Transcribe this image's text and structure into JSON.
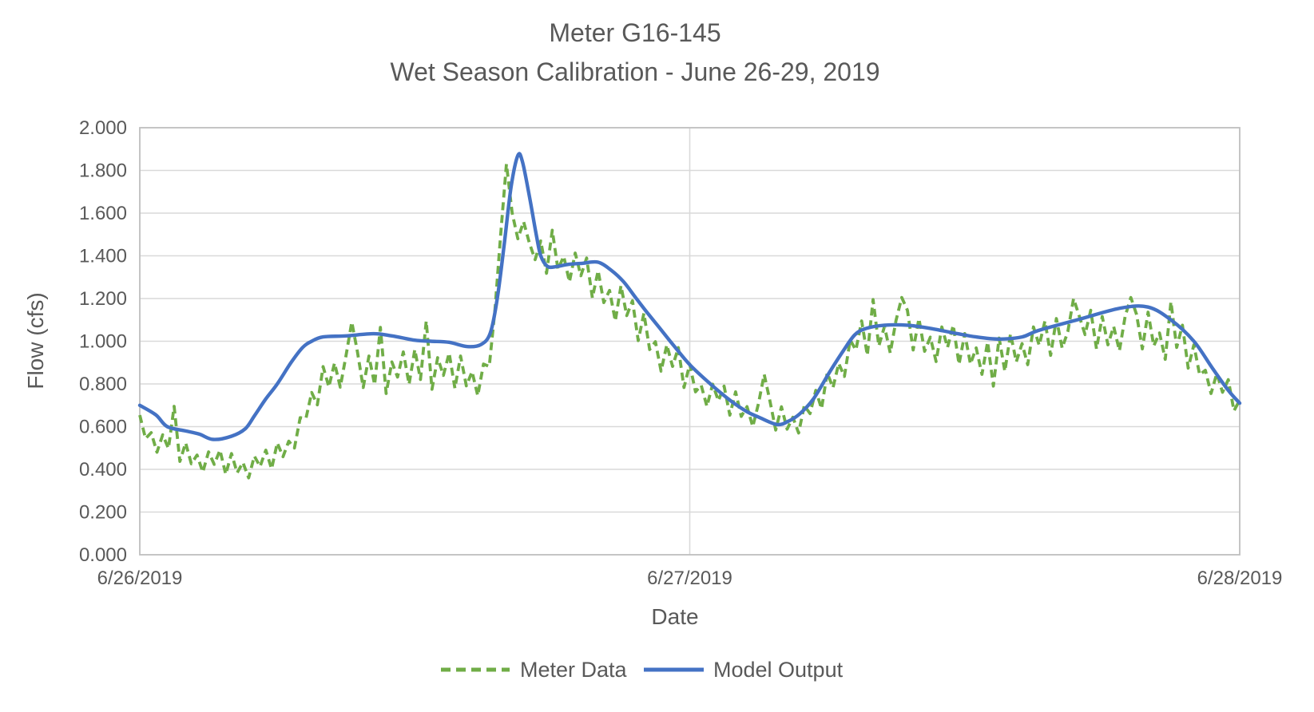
{
  "title": {
    "line1": "Meter G16-145",
    "line2": "Wet Season Calibration - June 26-29, 2019"
  },
  "axes": {
    "y": {
      "title": "Flow (cfs)",
      "tick_labels": [
        "2.000",
        "1.800",
        "1.600",
        "1.400",
        "1.200",
        "1.000",
        "0.800",
        "0.600",
        "0.400",
        "0.200",
        "0.000"
      ],
      "min": 0,
      "max": 2,
      "step": 0.2
    },
    "x": {
      "title": "Date",
      "tick_labels": [
        "6/26/2019",
        "6/27/2019",
        "6/28/2019"
      ],
      "tick_hours": [
        0,
        24,
        48
      ]
    }
  },
  "legend": {
    "items": [
      {
        "label": "Meter Data",
        "color": "#70AD47",
        "style": "dashed"
      },
      {
        "label": "Model Output",
        "color": "#4472C4",
        "style": "solid"
      }
    ]
  },
  "colors": {
    "meter_data": "#70AD47",
    "model_output": "#4472C4",
    "text": "#595959",
    "gridline": "#D9D9D9",
    "axis_line": "#BFBFBF"
  },
  "chart_data": {
    "type": "line",
    "title": "Meter G16-145 | Wet Season Calibration - June 26-29, 2019",
    "xlabel": "Date",
    "ylabel": "Flow (cfs)",
    "ylim": [
      0,
      2
    ],
    "xlim_hours": [
      0,
      48
    ],
    "x_unit": "hours since 6/26/2019 00:00",
    "x_tick_hours": [
      0,
      24,
      48
    ],
    "x_tick_labels": [
      "6/26/2019",
      "6/27/2019",
      "6/28/2019"
    ],
    "grid": "horizontal every 0.200 plus vertical day boundary at 6/27/2019",
    "legend_position": "bottom",
    "series": [
      {
        "name": "Meter Data",
        "color": "#70AD47",
        "line_style": "dashed",
        "x_start": 0,
        "x_step": 0.25,
        "values": [
          0.654,
          0.544,
          0.572,
          0.48,
          0.562,
          0.498,
          0.695,
          0.437,
          0.524,
          0.426,
          0.467,
          0.387,
          0.482,
          0.423,
          0.49,
          0.377,
          0.474,
          0.384,
          0.432,
          0.36,
          0.462,
          0.413,
          0.49,
          0.402,
          0.524,
          0.459,
          0.532,
          0.5,
          0.642,
          0.638,
          0.76,
          0.702,
          0.881,
          0.786,
          0.898,
          0.785,
          0.933,
          1.09,
          0.95,
          0.783,
          0.931,
          0.796,
          1.065,
          0.755,
          0.903,
          0.832,
          0.95,
          0.798,
          0.961,
          0.821,
          1.095,
          0.775,
          0.923,
          0.84,
          0.945,
          0.78,
          0.931,
          0.791,
          0.858,
          0.745,
          0.893,
          0.882,
          1.15,
          1.5,
          1.83,
          1.6,
          1.48,
          1.56,
          1.46,
          1.382,
          1.47,
          1.318,
          1.52,
          1.336,
          1.398,
          1.278,
          1.413,
          1.307,
          1.39,
          1.203,
          1.331,
          1.181,
          1.238,
          1.095,
          1.26,
          1.12,
          1.19,
          1.003,
          1.131,
          0.961,
          0.998,
          0.86,
          0.983,
          0.882,
          0.97,
          0.783,
          0.893,
          0.763,
          0.794,
          0.695,
          0.799,
          0.721,
          0.79,
          0.654,
          0.763,
          0.648,
          0.694,
          0.6,
          0.709,
          0.845,
          0.72,
          0.584,
          0.693,
          0.588,
          0.644,
          0.57,
          0.699,
          0.661,
          0.77,
          0.684,
          0.852,
          0.782,
          0.896,
          0.835,
          1.006,
          0.959,
          1.095,
          0.934,
          1.195,
          0.978,
          1.069,
          0.945,
          1.097,
          1.205,
          1.145,
          0.959,
          1.106,
          0.953,
          1.019,
          0.905,
          1.067,
          0.971,
          1.075,
          0.892,
          1.036,
          0.893,
          0.969,
          0.845,
          0.997,
          0.79,
          1.015,
          0.859,
          1.036,
          0.903,
          0.989,
          0.89,
          1.067,
          0.981,
          1.095,
          0.934,
          1.106,
          0.968,
          1.045,
          1.2,
          1.117,
          1.031,
          1.145,
          0.964,
          1.116,
          0.983,
          1.069,
          0.955,
          1.117,
          1.205,
          1.125,
          0.964,
          1.136,
          0.978,
          1.039,
          0.915,
          1.185,
          0.971,
          1.075,
          0.874,
          0.983,
          0.843,
          0.864,
          0.755,
          0.849,
          0.761,
          0.82,
          0.674,
          0.725
        ]
      },
      {
        "name": "Model Output",
        "color": "#4472C4",
        "line_style": "solid",
        "points": [
          [
            0,
            0.7
          ],
          [
            0.7,
            0.655
          ],
          [
            1.2,
            0.6
          ],
          [
            2,
            0.58
          ],
          [
            2.6,
            0.565
          ],
          [
            3.2,
            0.54
          ],
          [
            4,
            0.555
          ],
          [
            4.6,
            0.59
          ],
          [
            5,
            0.65
          ],
          [
            5.5,
            0.73
          ],
          [
            6,
            0.8
          ],
          [
            6.6,
            0.9
          ],
          [
            7.1,
            0.97
          ],
          [
            7.5,
            1.0
          ],
          [
            8,
            1.02
          ],
          [
            9,
            1.025
          ],
          [
            10.2,
            1.035
          ],
          [
            11,
            1.025
          ],
          [
            12,
            1.005
          ],
          [
            12.7,
            1.0
          ],
          [
            13.5,
            0.995
          ],
          [
            14.3,
            0.975
          ],
          [
            14.9,
            0.985
          ],
          [
            15.3,
            1.04
          ],
          [
            15.6,
            1.2
          ],
          [
            15.9,
            1.45
          ],
          [
            16.2,
            1.72
          ],
          [
            16.5,
            1.87
          ],
          [
            16.7,
            1.84
          ],
          [
            17,
            1.68
          ],
          [
            17.3,
            1.5
          ],
          [
            17.5,
            1.4
          ],
          [
            17.8,
            1.35
          ],
          [
            18.2,
            1.35
          ],
          [
            18.7,
            1.36
          ],
          [
            19.3,
            1.365
          ],
          [
            20,
            1.37
          ],
          [
            20.6,
            1.33
          ],
          [
            21.1,
            1.28
          ],
          [
            21.6,
            1.21
          ],
          [
            22.1,
            1.14
          ],
          [
            22.7,
            1.06
          ],
          [
            23.3,
            0.98
          ],
          [
            24,
            0.89
          ],
          [
            24.9,
            0.8
          ],
          [
            25.8,
            0.72
          ],
          [
            26.5,
            0.67
          ],
          [
            27,
            0.645
          ],
          [
            27.8,
            0.61
          ],
          [
            28.3,
            0.625
          ],
          [
            28.8,
            0.66
          ],
          [
            29.4,
            0.73
          ],
          [
            30.1,
            0.855
          ],
          [
            30.7,
            0.955
          ],
          [
            31.2,
            1.03
          ],
          [
            31.7,
            1.06
          ],
          [
            32.5,
            1.075
          ],
          [
            33.5,
            1.075
          ],
          [
            34.5,
            1.06
          ],
          [
            35.7,
            1.035
          ],
          [
            36.5,
            1.02
          ],
          [
            37.5,
            1.01
          ],
          [
            38.5,
            1.02
          ],
          [
            39.2,
            1.05
          ],
          [
            40.9,
            1.1
          ],
          [
            42.8,
            1.155
          ],
          [
            44,
            1.16
          ],
          [
            45,
            1.1
          ],
          [
            46,
            1.0
          ],
          [
            46.8,
            0.875
          ],
          [
            47.5,
            0.77
          ],
          [
            48,
            0.71
          ]
        ]
      }
    ]
  }
}
